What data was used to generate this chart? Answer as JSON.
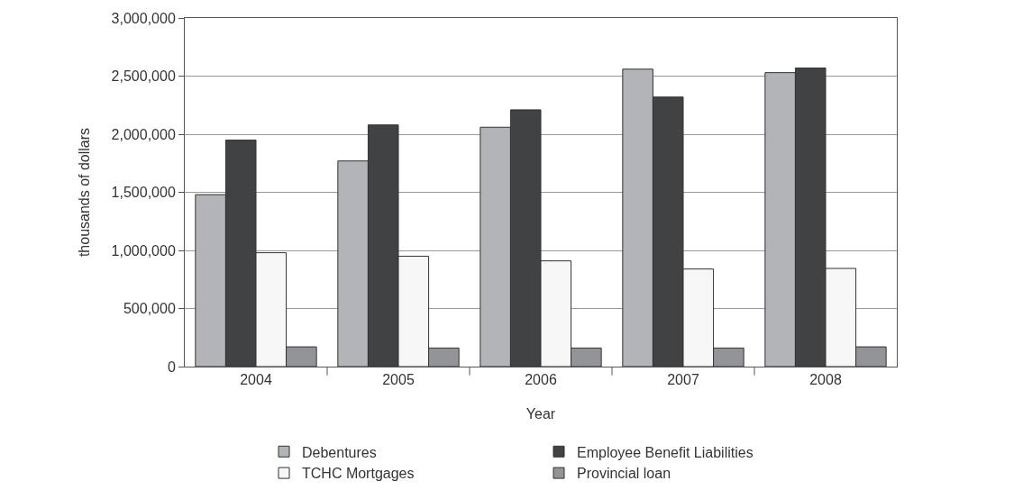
{
  "chart_data": {
    "type": "bar",
    "xlabel": "Year",
    "ylabel": "thousands of dollars",
    "categories": [
      "2004",
      "2005",
      "2006",
      "2007",
      "2008"
    ],
    "series": [
      {
        "name": "Debentures",
        "color": "#b3b4b8",
        "values": [
          1480000,
          1770000,
          2060000,
          2560000,
          2530000
        ]
      },
      {
        "name": "Employee Benefit Liabilities",
        "color": "#414244",
        "values": [
          1950000,
          2080000,
          2210000,
          2320000,
          2570000
        ]
      },
      {
        "name": "TCHC Mortgages",
        "color": "#f7f7f7",
        "values": [
          980000,
          950000,
          910000,
          840000,
          845000
        ]
      },
      {
        "name": "Provincial loan",
        "color": "#939497",
        "values": [
          170000,
          160000,
          160000,
          160000,
          170000
        ]
      }
    ],
    "ylim": [
      0,
      3000000
    ],
    "yticks": [
      0,
      {
        "value": 500000,
        "label": "500,000"
      },
      {
        "value": 1000000,
        "label": "1,000,000"
      },
      {
        "value": 1500000,
        "label": "1,500,000"
      },
      {
        "value": 2000000,
        "label": "2,000,000"
      },
      {
        "value": 2500000,
        "label": "2,500,000"
      },
      {
        "value": 3000000,
        "label": "3,000,000"
      }
    ],
    "grid": "y",
    "legend": "bottom"
  }
}
